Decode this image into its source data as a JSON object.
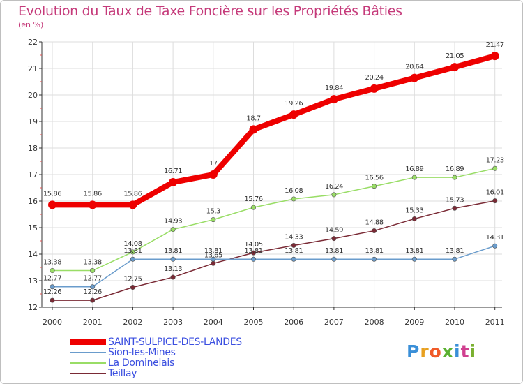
{
  "title": "Evolution du Taux de Taxe Foncière sur les Propriétés Bâties",
  "subtitle": "(en %)",
  "chart_data": {
    "type": "line",
    "title": "Evolution du Taux de Taxe Foncière sur les Propriétés Bâties",
    "ylabel": "(en %)",
    "xlabel": "",
    "ylim": [
      12,
      22
    ],
    "yticks": [
      "12",
      "13",
      "14",
      "15",
      "16",
      "17",
      "18",
      "19",
      "20",
      "21",
      "22"
    ],
    "categories": [
      "2000",
      "2001",
      "2002",
      "2003",
      "2004",
      "2005",
      "2006",
      "2007",
      "2008",
      "2009",
      "2010",
      "2011"
    ],
    "series": [
      {
        "name": "SAINT-SULPICE-DES-LANDES",
        "color": "#ee0000",
        "values": [
          15.86,
          15.86,
          15.86,
          16.71,
          17,
          18.7,
          19.26,
          19.84,
          20.24,
          20.64,
          21.05,
          21.47
        ],
        "labels": [
          "15.86",
          "15.86",
          "15.86",
          "16.71",
          "17",
          "18.7",
          "19.26",
          "19.84",
          "20.24",
          "20.64",
          "21.05",
          "21.47"
        ]
      },
      {
        "name": "Sion-les-Mines",
        "color": "#6a9ccc",
        "values": [
          12.77,
          12.77,
          13.81,
          13.81,
          13.81,
          13.81,
          13.81,
          13.81,
          13.81,
          13.81,
          13.81,
          14.31
        ],
        "labels": [
          "12.77",
          "12.77",
          "13.81",
          "13.81",
          "13.81",
          "13.81",
          "13.81",
          "13.81",
          "13.81",
          "13.81",
          "13.81",
          "14.31"
        ]
      },
      {
        "name": "La Dominelais",
        "color": "#99dd66",
        "values": [
          13.38,
          13.38,
          14.08,
          14.93,
          15.3,
          15.76,
          16.08,
          16.24,
          16.56,
          16.89,
          16.89,
          17.23
        ],
        "labels": [
          "13.38",
          "13.38",
          "14.08",
          "14.93",
          "15.3",
          "15.76",
          "16.08",
          "16.24",
          "16.56",
          "16.89",
          "16.89",
          "17.23"
        ]
      },
      {
        "name": "Teillay",
        "color": "#7a2a35",
        "values": [
          12.26,
          12.26,
          12.75,
          13.13,
          13.65,
          14.05,
          14.33,
          14.59,
          14.88,
          15.33,
          15.73,
          16.01
        ],
        "labels": [
          "12.26",
          "12.26",
          "12.75",
          "13.13",
          "13.65",
          "14.05",
          "14.33",
          "14.59",
          "14.88",
          "15.33",
          "15.73",
          "16.01"
        ]
      }
    ]
  },
  "logo": {
    "text": "Proxiti"
  }
}
